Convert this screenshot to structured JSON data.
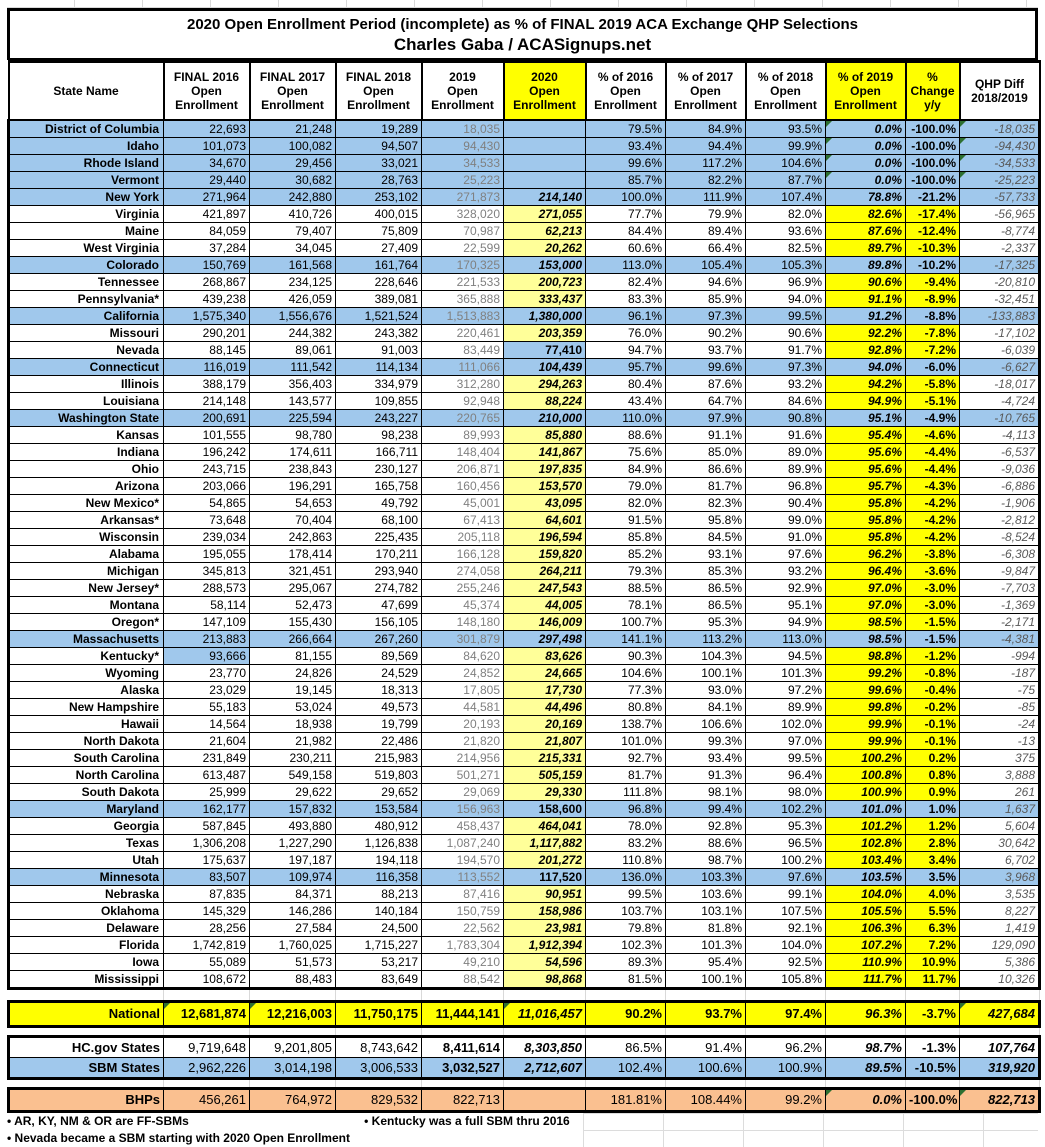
{
  "title": {
    "line1": "2020 Open Enrollment Period (incomplete) as % of FINAL 2019 ACA Exchange QHP Selections",
    "line2": "Charles Gaba / ACASignups.net"
  },
  "columns": [
    {
      "key": "state",
      "label": "State Name",
      "highlight": false
    },
    {
      "key": "final2016",
      "label": "FINAL 2016\nOpen\nEnrollment",
      "highlight": false
    },
    {
      "key": "final2017",
      "label": "FINAL 2017\nOpen\nEnrollment",
      "highlight": false
    },
    {
      "key": "final2018",
      "label": "FINAL 2018\nOpen\nEnrollment",
      "highlight": false
    },
    {
      "key": "oe2019",
      "label": "2019\nOpen\nEnrollment",
      "highlight": false
    },
    {
      "key": "oe2020",
      "label": "2020\nOpen\nEnrollment",
      "highlight": true
    },
    {
      "key": "pct2016",
      "label": "% of 2016\nOpen\nEnrollment",
      "highlight": false
    },
    {
      "key": "pct2017",
      "label": "% of 2017\nOpen\nEnrollment",
      "highlight": false
    },
    {
      "key": "pct2018",
      "label": "% of 2018\nOpen\nEnrollment",
      "highlight": false
    },
    {
      "key": "pct2019",
      "label": "% of 2019\nOpen\nEnrollment",
      "highlight": true
    },
    {
      "key": "chg",
      "label": "%\nChange\ny/y",
      "highlight": true
    },
    {
      "key": "diff",
      "label": "QHP Diff\n2018/2019",
      "highlight": false
    }
  ],
  "colors": {
    "sbm_row_blue": "#a0c8ec",
    "pale_yellow": "#ffff99",
    "highlight_yellow": "#ffff00",
    "bhp_peach": "#fac090",
    "gray_2019_text": "#808080",
    "diff_text": "#595959",
    "flag_triangle_green": "#2e7031"
  },
  "rows": [
    {
      "name": "District of Columbia",
      "sbm": true,
      "v": [
        "22,693",
        "21,248",
        "19,289",
        "18,035",
        "",
        "79.5%",
        "84.9%",
        "93.5%",
        "0.0%",
        "-100.0%",
        "-18,035"
      ],
      "tri": [
        8,
        10
      ]
    },
    {
      "name": "Idaho",
      "sbm": true,
      "v": [
        "101,073",
        "100,082",
        "94,507",
        "94,430",
        "",
        "93.4%",
        "94.4%",
        "99.9%",
        "0.0%",
        "-100.0%",
        "-94,430"
      ],
      "tri": [
        8,
        10
      ]
    },
    {
      "name": "Rhode Island",
      "sbm": true,
      "v": [
        "34,670",
        "29,456",
        "33,021",
        "34,533",
        "",
        "99.6%",
        "117.2%",
        "104.6%",
        "0.0%",
        "-100.0%",
        "-34,533"
      ],
      "tri": [
        8,
        10
      ]
    },
    {
      "name": "Vermont",
      "sbm": true,
      "v": [
        "29,440",
        "30,682",
        "28,763",
        "25,223",
        "",
        "85.7%",
        "82.2%",
        "87.7%",
        "0.0%",
        "-100.0%",
        "-25,223"
      ],
      "tri": [
        8,
        10
      ]
    },
    {
      "name": "New York",
      "sbm": true,
      "v": [
        "271,964",
        "242,880",
        "253,102",
        "271,873",
        "214,140",
        "100.0%",
        "111.9%",
        "107.4%",
        "78.8%",
        "-21.2%",
        "-57,733"
      ]
    },
    {
      "name": "Virginia",
      "sbm": false,
      "v": [
        "421,897",
        "410,726",
        "400,015",
        "328,020",
        "271,055",
        "77.7%",
        "79.9%",
        "82.0%",
        "82.6%",
        "-17.4%",
        "-56,965"
      ]
    },
    {
      "name": "Maine",
      "sbm": false,
      "v": [
        "84,059",
        "79,407",
        "75,809",
        "70,987",
        "62,213",
        "84.4%",
        "89.4%",
        "93.6%",
        "87.6%",
        "-12.4%",
        "-8,774"
      ]
    },
    {
      "name": "West Virginia",
      "sbm": false,
      "v": [
        "37,284",
        "34,045",
        "27,409",
        "22,599",
        "20,262",
        "60.6%",
        "66.4%",
        "82.5%",
        "89.7%",
        "-10.3%",
        "-2,337"
      ]
    },
    {
      "name": "Colorado",
      "sbm": true,
      "v": [
        "150,769",
        "161,568",
        "161,764",
        "170,325",
        "153,000",
        "113.0%",
        "105.4%",
        "105.3%",
        "89.8%",
        "-10.2%",
        "-17,325"
      ]
    },
    {
      "name": "Tennessee",
      "sbm": false,
      "v": [
        "268,867",
        "234,125",
        "228,646",
        "221,533",
        "200,723",
        "82.4%",
        "94.6%",
        "96.9%",
        "90.6%",
        "-9.4%",
        "-20,810"
      ]
    },
    {
      "name": "Pennsylvania*",
      "sbm": false,
      "v": [
        "439,238",
        "426,059",
        "389,081",
        "365,888",
        "333,437",
        "83.3%",
        "85.9%",
        "94.0%",
        "91.1%",
        "-8.9%",
        "-32,451"
      ]
    },
    {
      "name": "California",
      "sbm": true,
      "v": [
        "1,575,340",
        "1,556,676",
        "1,521,524",
        "1,513,883",
        "1,380,000",
        "96.1%",
        "97.3%",
        "99.5%",
        "91.2%",
        "-8.8%",
        "-133,883"
      ]
    },
    {
      "name": "Missouri",
      "sbm": false,
      "v": [
        "290,201",
        "244,382",
        "243,382",
        "220,461",
        "203,359",
        "76.0%",
        "90.2%",
        "90.6%",
        "92.2%",
        "-7.8%",
        "-17,102"
      ]
    },
    {
      "name": "Nevada",
      "sbm": false,
      "blue_cells": [
        4
      ],
      "up20": true,
      "v": [
        "88,145",
        "89,061",
        "91,003",
        "83,449",
        "77,410",
        "94.7%",
        "93.7%",
        "91.7%",
        "92.8%",
        "-7.2%",
        "-6,039"
      ]
    },
    {
      "name": "Connecticut",
      "sbm": true,
      "v": [
        "116,019",
        "111,542",
        "114,134",
        "111,066",
        "104,439",
        "95.7%",
        "99.6%",
        "97.3%",
        "94.0%",
        "-6.0%",
        "-6,627"
      ]
    },
    {
      "name": "Illinois",
      "sbm": false,
      "v": [
        "388,179",
        "356,403",
        "334,979",
        "312,280",
        "294,263",
        "80.4%",
        "87.6%",
        "93.2%",
        "94.2%",
        "-5.8%",
        "-18,017"
      ]
    },
    {
      "name": "Louisiana",
      "sbm": false,
      "v": [
        "214,148",
        "143,577",
        "109,855",
        "92,948",
        "88,224",
        "43.4%",
        "64.7%",
        "84.6%",
        "94.9%",
        "-5.1%",
        "-4,724"
      ]
    },
    {
      "name": "Washington State",
      "sbm": true,
      "v": [
        "200,691",
        "225,594",
        "243,227",
        "220,765",
        "210,000",
        "110.0%",
        "97.9%",
        "90.8%",
        "95.1%",
        "-4.9%",
        "-10,765"
      ]
    },
    {
      "name": "Kansas",
      "sbm": false,
      "v": [
        "101,555",
        "98,780",
        "98,238",
        "89,993",
        "85,880",
        "88.6%",
        "91.1%",
        "91.6%",
        "95.4%",
        "-4.6%",
        "-4,113"
      ]
    },
    {
      "name": "Indiana",
      "sbm": false,
      "v": [
        "196,242",
        "174,611",
        "166,711",
        "148,404",
        "141,867",
        "75.6%",
        "85.0%",
        "89.0%",
        "95.6%",
        "-4.4%",
        "-6,537"
      ]
    },
    {
      "name": "Ohio",
      "sbm": false,
      "v": [
        "243,715",
        "238,843",
        "230,127",
        "206,871",
        "197,835",
        "84.9%",
        "86.6%",
        "89.9%",
        "95.6%",
        "-4.4%",
        "-9,036"
      ]
    },
    {
      "name": "Arizona",
      "sbm": false,
      "v": [
        "203,066",
        "196,291",
        "165,758",
        "160,456",
        "153,570",
        "79.0%",
        "81.7%",
        "96.8%",
        "95.7%",
        "-4.3%",
        "-6,886"
      ]
    },
    {
      "name": "New Mexico*",
      "sbm": false,
      "v": [
        "54,865",
        "54,653",
        "49,792",
        "45,001",
        "43,095",
        "82.0%",
        "82.3%",
        "90.4%",
        "95.8%",
        "-4.2%",
        "-1,906"
      ]
    },
    {
      "name": "Arkansas*",
      "sbm": false,
      "v": [
        "73,648",
        "70,404",
        "68,100",
        "67,413",
        "64,601",
        "91.5%",
        "95.8%",
        "99.0%",
        "95.8%",
        "-4.2%",
        "-2,812"
      ]
    },
    {
      "name": "Wisconsin",
      "sbm": false,
      "v": [
        "239,034",
        "242,863",
        "225,435",
        "205,118",
        "196,594",
        "85.8%",
        "84.5%",
        "91.0%",
        "95.8%",
        "-4.2%",
        "-8,524"
      ]
    },
    {
      "name": "Alabama",
      "sbm": false,
      "v": [
        "195,055",
        "178,414",
        "170,211",
        "166,128",
        "159,820",
        "85.2%",
        "93.1%",
        "97.6%",
        "96.2%",
        "-3.8%",
        "-6,308"
      ]
    },
    {
      "name": "Michigan",
      "sbm": false,
      "v": [
        "345,813",
        "321,451",
        "293,940",
        "274,058",
        "264,211",
        "79.3%",
        "85.3%",
        "93.2%",
        "96.4%",
        "-3.6%",
        "-9,847"
      ]
    },
    {
      "name": "New Jersey*",
      "sbm": false,
      "v": [
        "288,573",
        "295,067",
        "274,782",
        "255,246",
        "247,543",
        "88.5%",
        "86.5%",
        "92.9%",
        "97.0%",
        "-3.0%",
        "-7,703"
      ]
    },
    {
      "name": "Montana",
      "sbm": false,
      "v": [
        "58,114",
        "52,473",
        "47,699",
        "45,374",
        "44,005",
        "78.1%",
        "86.5%",
        "95.1%",
        "97.0%",
        "-3.0%",
        "-1,369"
      ]
    },
    {
      "name": "Oregon*",
      "sbm": false,
      "v": [
        "147,109",
        "155,430",
        "156,105",
        "148,180",
        "146,009",
        "100.7%",
        "95.3%",
        "94.9%",
        "98.5%",
        "-1.5%",
        "-2,171"
      ]
    },
    {
      "name": "Massachusetts",
      "sbm": true,
      "v": [
        "213,883",
        "266,664",
        "267,260",
        "301,879",
        "297,498",
        "141.1%",
        "113.2%",
        "113.0%",
        "98.5%",
        "-1.5%",
        "-4,381"
      ]
    },
    {
      "name": "Kentucky*",
      "sbm": false,
      "blue_cells": [
        0
      ],
      "v": [
        "93,666",
        "81,155",
        "89,569",
        "84,620",
        "83,626",
        "90.3%",
        "104.3%",
        "94.5%",
        "98.8%",
        "-1.2%",
        "-994"
      ]
    },
    {
      "name": "Wyoming",
      "sbm": false,
      "v": [
        "23,770",
        "24,826",
        "24,529",
        "24,852",
        "24,665",
        "104.6%",
        "100.1%",
        "101.3%",
        "99.2%",
        "-0.8%",
        "-187"
      ]
    },
    {
      "name": "Alaska",
      "sbm": false,
      "v": [
        "23,029",
        "19,145",
        "18,313",
        "17,805",
        "17,730",
        "77.3%",
        "93.0%",
        "97.2%",
        "99.6%",
        "-0.4%",
        "-75"
      ]
    },
    {
      "name": "New Hampshire",
      "sbm": false,
      "v": [
        "55,183",
        "53,024",
        "49,573",
        "44,581",
        "44,496",
        "80.8%",
        "84.1%",
        "89.9%",
        "99.8%",
        "-0.2%",
        "-85"
      ]
    },
    {
      "name": "Hawaii",
      "sbm": false,
      "v": [
        "14,564",
        "18,938",
        "19,799",
        "20,193",
        "20,169",
        "138.7%",
        "106.6%",
        "102.0%",
        "99.9%",
        "-0.1%",
        "-24"
      ]
    },
    {
      "name": "North Dakota",
      "sbm": false,
      "v": [
        "21,604",
        "21,982",
        "22,486",
        "21,820",
        "21,807",
        "101.0%",
        "99.3%",
        "97.0%",
        "99.9%",
        "-0.1%",
        "-13"
      ]
    },
    {
      "name": "South Carolina",
      "sbm": false,
      "v": [
        "231,849",
        "230,211",
        "215,983",
        "214,956",
        "215,331",
        "92.7%",
        "93.4%",
        "99.5%",
        "100.2%",
        "0.2%",
        "375"
      ]
    },
    {
      "name": "North Carolina",
      "sbm": false,
      "v": [
        "613,487",
        "549,158",
        "519,803",
        "501,271",
        "505,159",
        "81.7%",
        "91.3%",
        "96.4%",
        "100.8%",
        "0.8%",
        "3,888"
      ]
    },
    {
      "name": "South Dakota",
      "sbm": false,
      "v": [
        "25,999",
        "29,622",
        "29,652",
        "29,069",
        "29,330",
        "111.8%",
        "98.1%",
        "98.0%",
        "100.9%",
        "0.9%",
        "261"
      ]
    },
    {
      "name": "Maryland",
      "sbm": true,
      "up20": true,
      "v": [
        "162,177",
        "157,832",
        "153,584",
        "156,963",
        "158,600",
        "96.8%",
        "99.4%",
        "102.2%",
        "101.0%",
        "1.0%",
        "1,637"
      ]
    },
    {
      "name": "Georgia",
      "sbm": false,
      "v": [
        "587,845",
        "493,880",
        "480,912",
        "458,437",
        "464,041",
        "78.0%",
        "92.8%",
        "95.3%",
        "101.2%",
        "1.2%",
        "5,604"
      ]
    },
    {
      "name": "Texas",
      "sbm": false,
      "v": [
        "1,306,208",
        "1,227,290",
        "1,126,838",
        "1,087,240",
        "1,117,882",
        "83.2%",
        "88.6%",
        "96.5%",
        "102.8%",
        "2.8%",
        "30,642"
      ]
    },
    {
      "name": "Utah",
      "sbm": false,
      "v": [
        "175,637",
        "197,187",
        "194,118",
        "194,570",
        "201,272",
        "110.8%",
        "98.7%",
        "100.2%",
        "103.4%",
        "3.4%",
        "6,702"
      ]
    },
    {
      "name": "Minnesota",
      "sbm": true,
      "up20": true,
      "v": [
        "83,507",
        "109,974",
        "116,358",
        "113,552",
        "117,520",
        "136.0%",
        "103.3%",
        "97.6%",
        "103.5%",
        "3.5%",
        "3,968"
      ]
    },
    {
      "name": "Nebraska",
      "sbm": false,
      "v": [
        "87,835",
        "84,371",
        "88,213",
        "87,416",
        "90,951",
        "99.5%",
        "103.6%",
        "99.1%",
        "104.0%",
        "4.0%",
        "3,535"
      ]
    },
    {
      "name": "Oklahoma",
      "sbm": false,
      "v": [
        "145,329",
        "146,286",
        "140,184",
        "150,759",
        "158,986",
        "103.7%",
        "103.1%",
        "107.5%",
        "105.5%",
        "5.5%",
        "8,227"
      ]
    },
    {
      "name": "Delaware",
      "sbm": false,
      "v": [
        "28,256",
        "27,584",
        "24,500",
        "22,562",
        "23,981",
        "79.8%",
        "81.8%",
        "92.1%",
        "106.3%",
        "6.3%",
        "1,419"
      ]
    },
    {
      "name": "Florida",
      "sbm": false,
      "v": [
        "1,742,819",
        "1,760,025",
        "1,715,227",
        "1,783,304",
        "1,912,394",
        "102.3%",
        "101.3%",
        "104.0%",
        "107.2%",
        "7.2%",
        "129,090"
      ]
    },
    {
      "name": "Iowa",
      "sbm": false,
      "v": [
        "55,089",
        "51,573",
        "53,217",
        "49,210",
        "54,596",
        "89.3%",
        "95.4%",
        "92.5%",
        "110.9%",
        "10.9%",
        "5,386"
      ]
    },
    {
      "name": "Mississippi",
      "sbm": false,
      "v": [
        "108,672",
        "88,483",
        "83,649",
        "88,542",
        "98,868",
        "81.5%",
        "100.1%",
        "105.8%",
        "111.7%",
        "11.7%",
        "10,326"
      ]
    }
  ],
  "totals": [
    {
      "kind": "national",
      "name": "National",
      "v": [
        "12,681,874",
        "12,216,003",
        "11,750,175",
        "11,444,141",
        "11,016,457",
        "90.2%",
        "93.7%",
        "97.4%",
        "96.3%",
        "-3.7%",
        "427,684"
      ],
      "tri": [
        0,
        1,
        4,
        10
      ]
    },
    {
      "kind": "hcgov",
      "name": "HC.gov States",
      "v": [
        "9,719,648",
        "9,201,805",
        "8,743,642",
        "8,411,614",
        "8,303,850",
        "86.5%",
        "91.4%",
        "96.2%",
        "98.7%",
        "-1.3%",
        "107,764"
      ]
    },
    {
      "kind": "sbmrow",
      "name": "SBM States",
      "v": [
        "2,962,226",
        "3,014,198",
        "3,006,533",
        "3,032,527",
        "2,712,607",
        "102.4%",
        "100.6%",
        "100.9%",
        "89.5%",
        "-10.5%",
        "319,920"
      ]
    },
    {
      "kind": "bhps",
      "name": "BHPs",
      "v": [
        "456,261",
        "764,972",
        "829,532",
        "822,713",
        "",
        "181.81%",
        "108.44%",
        "99.2%",
        "0.0%",
        "-100.0%",
        "822,713"
      ],
      "tri": [
        8,
        10
      ]
    }
  ],
  "footnotes": {
    "line1a": "• AR, KY, NM & OR are FF-SBMs",
    "line1b": "• Kentucky was a full SBM thru 2016",
    "line2": "• Nevada became a SBM starting with 2020 Open Enrollment"
  }
}
